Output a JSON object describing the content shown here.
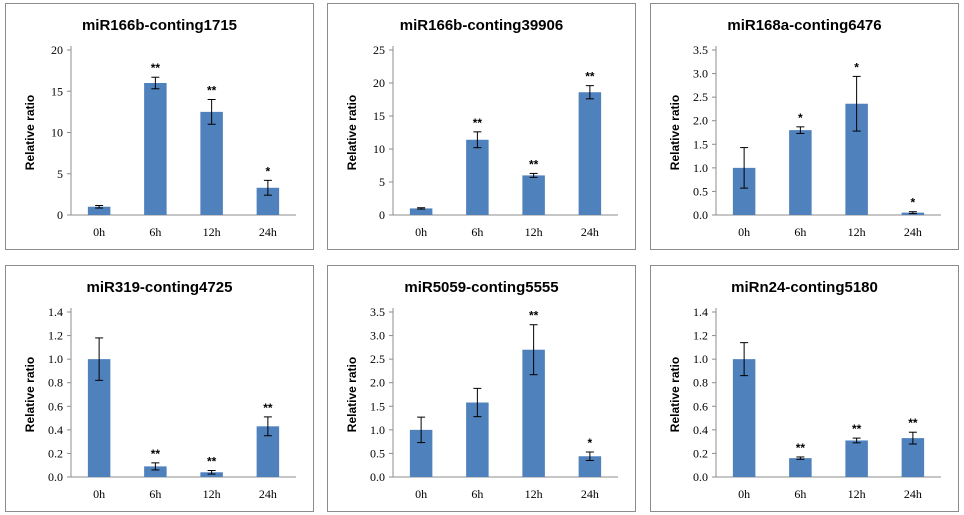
{
  "chart_data": [
    {
      "type": "bar",
      "title": "miR166b-conting1715",
      "ylabel": "Relative ratio",
      "xlabel": "",
      "categories": [
        "0h",
        "6h",
        "12h",
        "24h"
      ],
      "values": [
        1.0,
        16.0,
        12.5,
        3.3
      ],
      "errors": [
        0.15,
        0.7,
        1.5,
        0.9
      ],
      "significance": [
        "",
        "**",
        "**",
        "*"
      ],
      "ylim": [
        0,
        20
      ],
      "yticks": [
        0,
        5,
        10,
        15,
        20
      ],
      "ytick_labels": [
        "0",
        "5",
        "10",
        "15",
        "20"
      ],
      "bar_color": "#4f81bd"
    },
    {
      "type": "bar",
      "title": "miR166b-conting39906",
      "ylabel": "Relative ratio",
      "xlabel": "",
      "categories": [
        "0h",
        "6h",
        "12h",
        "24h"
      ],
      "values": [
        1.0,
        11.4,
        6.0,
        18.6
      ],
      "errors": [
        0.1,
        1.2,
        0.3,
        1.0
      ],
      "significance": [
        "",
        "**",
        "**",
        "**"
      ],
      "ylim": [
        0,
        25
      ],
      "yticks": [
        0,
        5,
        10,
        15,
        20,
        25
      ],
      "ytick_labels": [
        "0",
        "5",
        "10",
        "15",
        "20",
        "25"
      ],
      "bar_color": "#4f81bd"
    },
    {
      "type": "bar",
      "title": "miR168a-conting6476",
      "ylabel": "Relative ratio",
      "xlabel": "",
      "categories": [
        "0h",
        "6h",
        "12h",
        "24h"
      ],
      "values": [
        1.0,
        1.8,
        2.36,
        0.05
      ],
      "errors": [
        0.43,
        0.07,
        0.58,
        0.02
      ],
      "significance": [
        "",
        "*",
        "*",
        "*"
      ],
      "ylim": [
        0,
        3.5
      ],
      "yticks": [
        0,
        0.5,
        1.0,
        1.5,
        2.0,
        2.5,
        3.0,
        3.5
      ],
      "ytick_labels": [
        "0.0",
        "0.5",
        "1.0",
        "1.5",
        "2.0",
        "2.5",
        "3.0",
        "3.5"
      ],
      "bar_color": "#4f81bd"
    },
    {
      "type": "bar",
      "title": "miR319-conting4725",
      "ylabel": "Relative ratio",
      "xlabel": "",
      "categories": [
        "0h",
        "6h",
        "12h",
        "24h"
      ],
      "values": [
        1.0,
        0.09,
        0.04,
        0.43
      ],
      "errors": [
        0.18,
        0.03,
        0.015,
        0.08
      ],
      "significance": [
        "",
        "**",
        "**",
        "**"
      ],
      "ylim": [
        0,
        1.4
      ],
      "yticks": [
        0,
        0.2,
        0.4,
        0.6,
        0.8,
        1.0,
        1.2,
        1.4
      ],
      "ytick_labels": [
        "0.0",
        "0.2",
        "0.4",
        "0.6",
        "0.8",
        "1.0",
        "1.2",
        "1.4"
      ],
      "bar_color": "#4f81bd"
    },
    {
      "type": "bar",
      "title": "miR5059-conting5555",
      "ylabel": "Relative ratio",
      "xlabel": "",
      "categories": [
        "0h",
        "6h",
        "12h",
        "24h"
      ],
      "values": [
        1.0,
        1.58,
        2.7,
        0.44
      ],
      "errors": [
        0.27,
        0.3,
        0.53,
        0.09
      ],
      "significance": [
        "",
        "",
        "**",
        "*"
      ],
      "ylim": [
        0,
        3.5
      ],
      "yticks": [
        0,
        0.5,
        1.0,
        1.5,
        2.0,
        2.5,
        3.0,
        3.5
      ],
      "ytick_labels": [
        "0.0",
        "0.5",
        "1.0",
        "1.5",
        "2.0",
        "2.5",
        "3.0",
        "3.5"
      ],
      "bar_color": "#4f81bd"
    },
    {
      "type": "bar",
      "title": "miRn24-conting5180",
      "ylabel": "Relative ratio",
      "xlabel": "",
      "categories": [
        "0h",
        "6h",
        "12h",
        "24h"
      ],
      "values": [
        1.0,
        0.16,
        0.31,
        0.33
      ],
      "errors": [
        0.14,
        0.01,
        0.02,
        0.05
      ],
      "significance": [
        "",
        "**",
        "**",
        "**"
      ],
      "ylim": [
        0,
        1.4
      ],
      "yticks": [
        0,
        0.2,
        0.4,
        0.6,
        0.8,
        1.0,
        1.2,
        1.4
      ],
      "ytick_labels": [
        "0.0",
        "0.2",
        "0.4",
        "0.6",
        "0.8",
        "1.0",
        "1.2",
        "1.4"
      ],
      "bar_color": "#4f81bd"
    }
  ]
}
